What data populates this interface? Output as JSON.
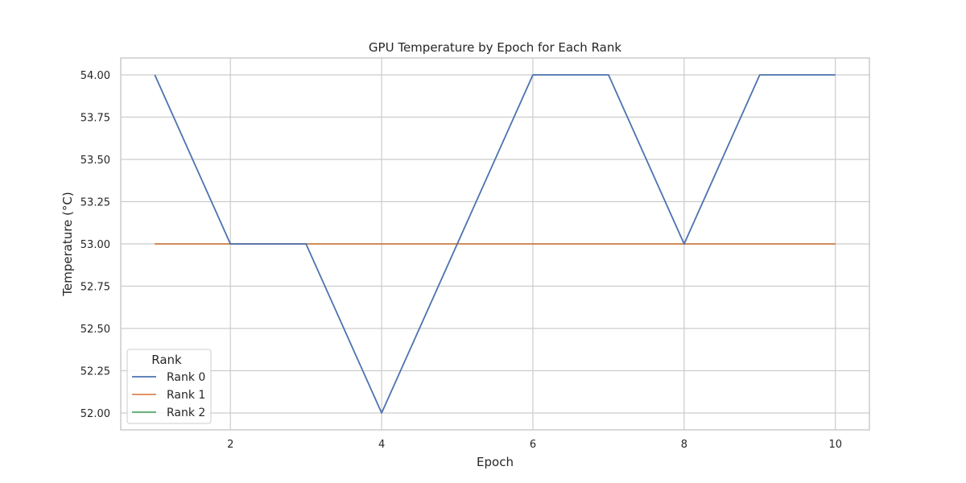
{
  "chart_data": {
    "type": "line",
    "title": "GPU Temperature by Epoch for Each Rank",
    "xlabel": "Epoch",
    "ylabel": "Temperature (°C)",
    "x": [
      1,
      2,
      3,
      4,
      5,
      6,
      7,
      8,
      9,
      10
    ],
    "xlim": [
      0.55,
      10.45
    ],
    "ylim": [
      51.9,
      54.1
    ],
    "xticks": [
      2,
      4,
      6,
      8,
      10
    ],
    "yticks": [
      52.0,
      52.25,
      52.5,
      52.75,
      53.0,
      53.25,
      53.5,
      53.75,
      54.0
    ],
    "ytick_labels": [
      "52.00",
      "52.25",
      "52.50",
      "52.75",
      "53.00",
      "53.25",
      "53.50",
      "53.75",
      "54.00"
    ],
    "grid": true,
    "legend": {
      "title": "Rank",
      "position": "bottom-left"
    },
    "series": [
      {
        "name": "Rank 0",
        "color": "#4c72b0",
        "values": [
          54,
          53,
          53,
          52,
          53,
          54,
          54,
          53,
          54,
          54
        ]
      },
      {
        "name": "Rank 1",
        "color": "#dd8452",
        "values": [
          53,
          53,
          53,
          53,
          53,
          53,
          53,
          53,
          53,
          53
        ]
      },
      {
        "name": "Rank 2",
        "color": "#55a868",
        "values": [
          53,
          53,
          53,
          53,
          53,
          53,
          53,
          53,
          53,
          53
        ]
      }
    ]
  }
}
